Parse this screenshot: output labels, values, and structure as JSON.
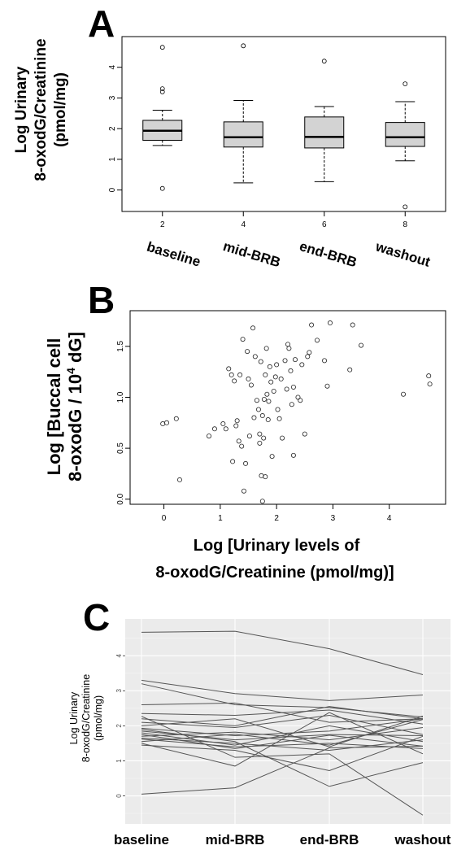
{
  "panels": {
    "a": {
      "letter": "A"
    },
    "b": {
      "letter": "B"
    },
    "c": {
      "letter": "C"
    }
  },
  "chart_data": [
    {
      "type": "box",
      "panel": "A",
      "ylabel_lines": [
        "Log Urinary",
        "8-oxodG/Creatinine",
        "(pmol/mg)"
      ],
      "x_ticks": [
        2,
        4,
        6,
        8
      ],
      "y_ticks": [
        0,
        1,
        2,
        3,
        4
      ],
      "xlim": [
        1,
        9
      ],
      "ylim": [
        -0.7,
        5.0
      ],
      "grid": false,
      "categories": [
        "baseline",
        "mid-BRB",
        "end-BRB",
        "washout"
      ],
      "boxes": [
        {
          "x": 2,
          "whisker_low": 1.45,
          "q1": 1.62,
          "median": 1.93,
          "q3": 2.27,
          "whisker_high": 2.6,
          "outliers": [
            4.65,
            3.3,
            3.2,
            0.05
          ]
        },
        {
          "x": 4,
          "whisker_low": 0.23,
          "q1": 1.4,
          "median": 1.72,
          "q3": 2.22,
          "whisker_high": 2.92,
          "outliers": [
            4.7
          ]
        },
        {
          "x": 6,
          "whisker_low": 0.27,
          "q1": 1.37,
          "median": 1.73,
          "q3": 2.38,
          "whisker_high": 2.72,
          "outliers": [
            4.2
          ]
        },
        {
          "x": 8,
          "whisker_low": 0.95,
          "q1": 1.42,
          "median": 1.72,
          "q3": 2.2,
          "whisker_high": 2.88,
          "outliers": [
            3.46,
            -0.55
          ]
        }
      ],
      "box_fill": "#d3d3d3"
    },
    {
      "type": "scatter",
      "panel": "B",
      "ylabel_lines": [
        "Log [Buccal cell",
        "8-oxodG / 10",
        "4",
        " dG]"
      ],
      "xlabel_lines": [
        "Log [Urinary levels of",
        "8-oxodG/Creatinine (pmol/mg)]"
      ],
      "x_ticks": [
        0,
        1,
        2,
        3,
        4
      ],
      "y_ticks": [
        0.0,
        0.5,
        1.0,
        1.5
      ],
      "y_tick_labels": [
        "0.0",
        "0.5",
        "1.0",
        "1.5"
      ],
      "xlim": [
        -0.6,
        5.0
      ],
      "ylim": [
        -0.05,
        1.85
      ],
      "grid": false,
      "points": [
        [
          0.05,
          0.75
        ],
        [
          0.22,
          0.79
        ],
        [
          0.28,
          0.19
        ],
        [
          0.8,
          0.62
        ],
        [
          0.9,
          0.69
        ],
        [
          1.05,
          0.74
        ],
        [
          1.1,
          0.69
        ],
        [
          1.15,
          1.28
        ],
        [
          1.2,
          1.22
        ],
        [
          1.22,
          0.37
        ],
        [
          1.25,
          1.16
        ],
        [
          1.28,
          0.72
        ],
        [
          1.3,
          0.77
        ],
        [
          1.33,
          0.57
        ],
        [
          1.35,
          1.22
        ],
        [
          1.38,
          0.52
        ],
        [
          1.4,
          1.57
        ],
        [
          1.42,
          0.08
        ],
        [
          1.45,
          0.35
        ],
        [
          1.48,
          1.45
        ],
        [
          1.5,
          1.18
        ],
        [
          1.52,
          0.62
        ],
        [
          1.55,
          1.12
        ],
        [
          1.58,
          1.68
        ],
        [
          1.6,
          0.8
        ],
        [
          1.62,
          1.4
        ],
        [
          1.65,
          0.97
        ],
        [
          1.68,
          0.88
        ],
        [
          1.7,
          0.64
        ],
        [
          1.7,
          0.55
        ],
        [
          1.72,
          1.35
        ],
        [
          1.73,
          0.23
        ],
        [
          1.75,
          0.82
        ],
        [
          1.77,
          0.6
        ],
        [
          1.78,
          0.98
        ],
        [
          1.8,
          1.22
        ],
        [
          1.8,
          0.22
        ],
        [
          1.82,
          1.48
        ],
        [
          1.83,
          1.03
        ],
        [
          1.85,
          0.78
        ],
        [
          1.86,
          0.96
        ],
        [
          1.88,
          1.3
        ],
        [
          1.9,
          1.15
        ],
        [
          1.92,
          0.42
        ],
        [
          1.95,
          1.06
        ],
        [
          1.98,
          1.2
        ],
        [
          2.0,
          1.32
        ],
        [
          2.02,
          0.88
        ],
        [
          2.05,
          0.79
        ],
        [
          2.08,
          1.18
        ],
        [
          2.1,
          0.6
        ],
        [
          2.15,
          1.36
        ],
        [
          2.18,
          1.08
        ],
        [
          2.2,
          1.52
        ],
        [
          2.22,
          1.48
        ],
        [
          2.25,
          1.26
        ],
        [
          2.27,
          0.93
        ],
        [
          2.3,
          0.43
        ],
        [
          2.3,
          1.1
        ],
        [
          2.33,
          1.37
        ],
        [
          2.38,
          1.0
        ],
        [
          2.42,
          0.97
        ],
        [
          2.45,
          1.32
        ],
        [
          2.5,
          0.64
        ],
        [
          2.55,
          1.4
        ],
        [
          2.58,
          1.44
        ],
        [
          2.62,
          1.71
        ],
        [
          2.72,
          1.56
        ],
        [
          2.85,
          1.36
        ],
        [
          2.9,
          1.11
        ],
        [
          2.95,
          1.73
        ],
        [
          3.3,
          1.27
        ],
        [
          3.35,
          1.71
        ],
        [
          3.5,
          1.51
        ],
        [
          4.25,
          1.03
        ],
        [
          4.7,
          1.21
        ],
        [
          4.72,
          1.13
        ],
        [
          -0.02,
          0.74
        ],
        [
          1.75,
          -0.02
        ]
      ]
    },
    {
      "type": "line",
      "panel": "C",
      "ylabel_lines": [
        "Log Urinary",
        "8-oxodG/Creatinine",
        "(pmol/mg)"
      ],
      "categories": [
        "baseline",
        "mid-BRB",
        "end-BRB",
        "washout"
      ],
      "y_ticks": [
        0,
        1,
        2,
        3,
        4
      ],
      "ylim": [
        -0.8,
        5.05
      ],
      "grid": true,
      "background": "#ebebeb",
      "line_color": "#555555",
      "series": [
        {
          "values": [
            4.67,
            4.7,
            4.2,
            3.46
          ]
        },
        {
          "values": [
            3.3,
            2.92,
            2.72,
            2.88
          ]
        },
        {
          "values": [
            3.2,
            2.6,
            2.52,
            2.25
          ]
        },
        {
          "values": [
            2.6,
            2.65,
            2.1,
            2.2
          ]
        },
        {
          "values": [
            2.35,
            2.3,
            2.45,
            2.05
          ]
        },
        {
          "values": [
            2.2,
            2.0,
            2.55,
            2.2
          ]
        },
        {
          "values": [
            2.1,
            1.95,
            2.3,
            1.75
          ]
        },
        {
          "values": [
            2.0,
            2.2,
            1.4,
            2.28
          ]
        },
        {
          "values": [
            1.93,
            1.72,
            1.85,
            2.2
          ]
        },
        {
          "values": [
            1.85,
            1.6,
            1.75,
            1.72
          ]
        },
        {
          "values": [
            1.8,
            1.45,
            2.0,
            1.55
          ]
        },
        {
          "values": [
            1.75,
            1.35,
            1.73,
            1.42
          ]
        },
        {
          "values": [
            1.7,
            1.82,
            1.6,
            1.95
          ]
        },
        {
          "values": [
            1.65,
            1.5,
            1.3,
            1.6
          ]
        },
        {
          "values": [
            1.62,
            1.4,
            1.5,
            1.35
          ]
        },
        {
          "values": [
            1.55,
            1.76,
            1.45,
            2.18
          ]
        },
        {
          "values": [
            1.5,
            0.85,
            2.38,
            1.2
          ]
        },
        {
          "values": [
            1.45,
            1.3,
            0.72,
            1.7
          ]
        },
        {
          "values": [
            1.9,
            1.55,
            0.27,
            0.95
          ]
        },
        {
          "values": [
            2.27,
            1.1,
            1.2,
            -0.55
          ]
        },
        {
          "values": [
            0.05,
            0.23,
            1.37,
            1.42
          ]
        }
      ]
    }
  ]
}
